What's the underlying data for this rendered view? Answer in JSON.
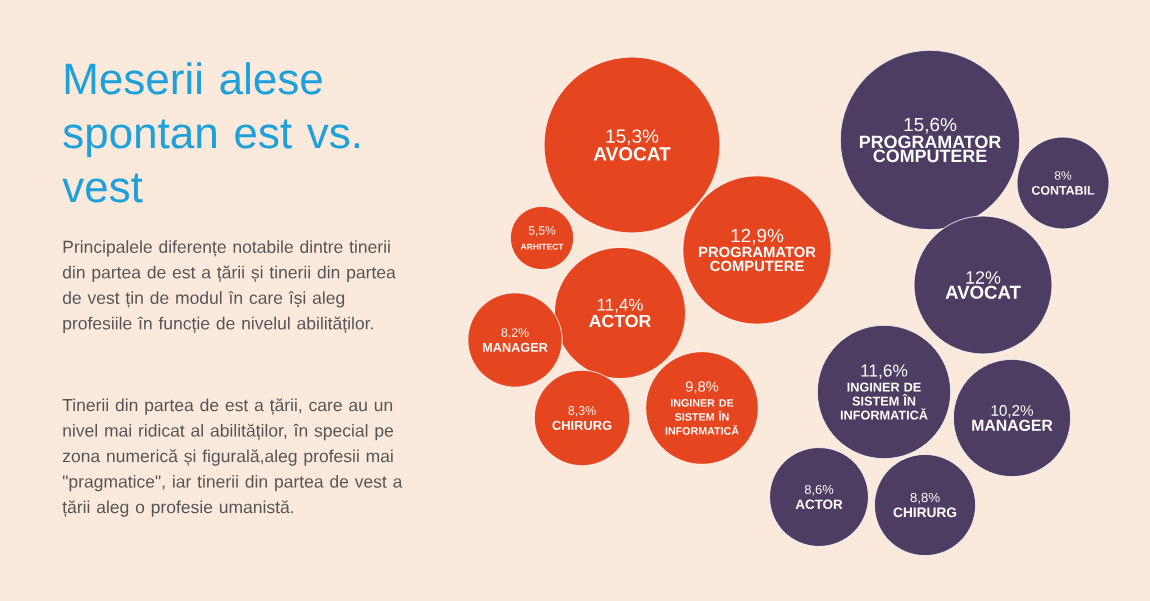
{
  "chart_data": {
    "type": "other",
    "title": "Meserii alese spontan est vs. vest",
    "annotations": [
      "Principalele diferențe notabile dintre tinerii din partea de est a țării și tinerii din partea de vest țin de modul în care își aleg profesiile în funcție de nivelul abilităților.",
      "Tinerii din partea de est a țării, care au un nivel mai ridicat al abilităților, în special pe zona numerică și figurală,aleg profesii mai \"pragmatice\", iar tinerii din partea de vest a țării aleg o profesie umanistă."
    ],
    "categories": [
      "AVOCAT",
      "ARHITECT",
      "ACTOR",
      "MANAGER",
      "CHIRURG",
      "INGINER DE SISTEM ÎN INFORMATICĂ",
      "PROGRAMATOR COMPUTERE",
      "PROGRAMATOR COMPUTERE",
      "CONTABIL",
      "AVOCAT",
      "INGINER DE SISTEM ÎN INFORMATICĂ",
      "MANAGER",
      "ACTOR",
      "CHIRURG"
    ],
    "values": [
      15.3,
      5.5,
      11.4,
      8.2,
      8.3,
      9.8,
      12.9,
      15.6,
      8,
      12,
      11.6,
      10.2,
      8.6,
      8.8
    ],
    "value_labels": [
      "15,3%",
      "5,5%",
      "11,4%",
      "8,2%",
      "8,3%",
      "9,8%",
      "12,9%",
      "15,6%",
      "8%",
      "12%",
      "11,6%",
      "10,2%",
      "8,6%",
      "8,8%"
    ],
    "colors": [
      "#e5461f",
      "#e5461f",
      "#e5461f",
      "#e5461f",
      "#e5461f",
      "#e5461f",
      "#e5461f",
      "#4e3d63",
      "#4e3d63",
      "#4e3d63",
      "#4e3d63",
      "#4e3d63",
      "#4e3d63",
      "#4e3d63"
    ]
  }
}
